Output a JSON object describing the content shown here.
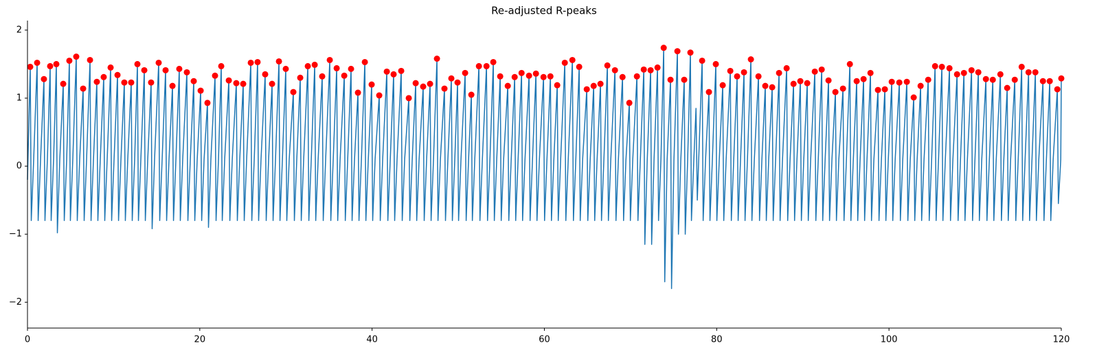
{
  "chart_data": {
    "type": "line",
    "title": "Re-adjusted R-peaks",
    "xlim": [
      0,
      120
    ],
    "ylim": [
      -2.38,
      2.14
    ],
    "xticks": [
      0,
      20,
      40,
      60,
      80,
      100,
      120
    ],
    "yticks": [
      {
        "value": -2,
        "label": "−2"
      },
      {
        "value": -1,
        "label": "−1"
      },
      0,
      1,
      2
    ],
    "series": [
      {
        "type": "line",
        "color": "#1f77b4",
        "x": [
          0,
          0.32,
          0.44,
          0.72,
          1.12,
          1.24,
          1.52,
          1.91,
          2.03,
          2.31,
          2.63,
          2.75,
          3.03,
          3.35,
          3.47,
          3.75,
          4.15,
          4.27,
          4.55,
          4.86,
          4.98,
          5.26,
          5.66,
          5.78,
          6.06,
          6.46,
          6.58,
          6.86,
          7.26,
          7.38,
          7.66,
          8.05,
          8.17,
          8.45,
          8.85,
          8.97,
          9.25,
          9.65,
          9.77,
          10.05,
          10.45,
          10.57,
          10.85,
          11.24,
          11.36,
          11.64,
          12.04,
          12.16,
          12.44,
          12.76,
          12.88,
          13.16,
          13.56,
          13.68,
          13.96,
          14.35,
          14.47,
          14.75,
          15.23,
          15.35,
          15.63,
          16.03,
          16.15,
          16.43,
          16.83,
          16.95,
          17.23,
          17.62,
          17.74,
          18.02,
          18.5,
          18.62,
          18.9,
          19.3,
          19.42,
          19.7,
          20.1,
          20.22,
          20.5,
          20.89,
          21.01,
          21.29,
          21.77,
          21.89,
          22.17,
          22.49,
          22.61,
          22.89,
          23.37,
          23.49,
          23.77,
          24.24,
          24.36,
          24.64,
          25.04,
          25.16,
          25.44,
          25.92,
          26.04,
          26.32,
          26.71,
          26.83,
          27.11,
          27.59,
          27.71,
          27.99,
          28.39,
          28.51,
          28.79,
          29.19,
          29.31,
          29.59,
          29.98,
          30.1,
          30.38,
          30.86,
          30.98,
          31.26,
          31.66,
          31.78,
          32.06,
          32.54,
          32.66,
          32.94,
          33.34,
          33.46,
          33.74,
          34.21,
          34.33,
          34.61,
          35.09,
          35.21,
          35.49,
          35.89,
          36.01,
          36.29,
          36.77,
          36.89,
          37.17,
          37.56,
          37.68,
          37.96,
          38.36,
          38.48,
          38.76,
          39.16,
          39.28,
          39.56,
          39.95,
          40.07,
          40.35,
          40.83,
          40.95,
          41.23,
          41.71,
          41.83,
          42.11,
          42.5,
          42.62,
          42.9,
          43.38,
          43.5,
          43.78,
          44.26,
          44.38,
          44.66,
          45.06,
          45.18,
          45.46,
          45.93,
          46.05,
          46.33,
          46.73,
          46.85,
          47.13,
          47.53,
          47.65,
          47.93,
          48.4,
          48.52,
          48.8,
          49.2,
          49.32,
          49.6,
          49.92,
          50.04,
          50.32,
          50.8,
          50.92,
          51.2,
          51.52,
          51.64,
          51.92,
          52.4,
          52.52,
          52.8,
          53.28,
          53.4,
          53.68,
          54.07,
          54.19,
          54.47,
          54.87,
          54.99,
          55.27,
          55.75,
          55.87,
          56.15,
          56.55,
          56.67,
          56.95,
          57.35,
          57.47,
          57.75,
          58.22,
          58.34,
          58.62,
          59.02,
          59.14,
          59.42,
          59.9,
          60.02,
          60.3,
          60.7,
          60.82,
          61.1,
          61.49,
          61.61,
          61.89,
          62.37,
          62.49,
          62.77,
          63.25,
          63.37,
          63.65,
          64.04,
          64.16,
          64.44,
          64.92,
          65.04,
          65.32,
          65.72,
          65.84,
          66.12,
          66.51,
          66.63,
          66.91,
          67.31,
          67.43,
          67.71,
          68.19,
          68.31,
          68.59,
          69.07,
          69.19,
          69.47,
          69.86,
          69.98,
          70.26,
          70.74,
          70.86,
          71.14,
          71.54,
          71.66,
          71.94,
          72.33,
          72.45,
          72.73,
          73.13,
          73.25,
          73.53,
          73.85,
          73.97,
          74.25,
          74.64,
          74.76,
          75.04,
          75.44,
          75.56,
          75.84,
          76.23,
          76.35,
          76.63,
          76.95,
          77.07,
          77.35,
          77.6,
          77.75,
          78.31,
          78.43,
          78.71,
          79.1,
          79.22,
          79.5,
          79.9,
          80.02,
          80.3,
          80.7,
          80.82,
          81.1,
          81.58,
          81.7,
          81.98,
          82.37,
          82.49,
          82.77,
          83.17,
          83.29,
          83.57,
          83.97,
          84.09,
          84.37,
          84.85,
          84.97,
          85.25,
          85.64,
          85.76,
          86.04,
          86.44,
          86.56,
          86.84,
          87.24,
          87.36,
          87.64,
          88.12,
          88.24,
          88.52,
          88.92,
          89.04,
          89.32,
          89.71,
          89.83,
          90.11,
          90.51,
          90.63,
          90.91,
          91.39,
          91.51,
          91.79,
          92.19,
          92.31,
          92.59,
          92.98,
          93.1,
          93.38,
          93.78,
          93.9,
          94.18,
          94.66,
          94.78,
          95.06,
          95.46,
          95.58,
          95.86,
          96.25,
          96.37,
          96.65,
          97.05,
          97.17,
          97.45,
          97.85,
          97.97,
          98.25,
          98.72,
          98.84,
          99.12,
          99.52,
          99.64,
          99.92,
          100.32,
          100.44,
          100.72,
          101.2,
          101.32,
          101.6,
          102.07,
          102.19,
          102.47,
          102.87,
          102.99,
          103.27,
          103.67,
          103.79,
          104.07,
          104.55,
          104.67,
          104.95,
          105.35,
          105.47,
          105.75,
          106.14,
          106.26,
          106.54,
          107.02,
          107.14,
          107.42,
          107.9,
          108.02,
          108.3,
          108.7,
          108.82,
          109.1,
          109.58,
          109.7,
          109.98,
          110.37,
          110.49,
          110.77,
          111.25,
          111.37,
          111.65,
          112.05,
          112.17,
          112.45,
          112.93,
          113.05,
          113.33,
          113.72,
          113.84,
          114.12,
          114.6,
          114.72,
          115.0,
          115.4,
          115.52,
          115.8,
          116.2,
          116.32,
          116.6,
          116.99,
          117.11,
          117.39,
          117.87,
          117.99,
          118.27,
          118.66,
          118.78,
          119.06,
          119.54,
          119.66,
          119.94,
          120.0
        ],
        "values": [
          -0.2,
          1.46,
          -0.8,
          0.1,
          1.52,
          -0.8,
          0.1,
          1.28,
          -0.8,
          0.1,
          1.47,
          -0.8,
          0.1,
          1.5,
          -0.98,
          0.1,
          1.21,
          -0.8,
          0.1,
          1.55,
          -0.8,
          0.1,
          1.61,
          -0.8,
          0.1,
          1.14,
          -0.8,
          0.1,
          1.56,
          -0.8,
          0.1,
          1.24,
          -0.8,
          0.1,
          1.31,
          -0.8,
          0.1,
          1.45,
          -0.8,
          0.1,
          1.34,
          -0.8,
          0.1,
          1.23,
          -0.8,
          0.1,
          1.23,
          -0.8,
          0.1,
          1.5,
          -0.8,
          0.1,
          1.41,
          -0.8,
          0.1,
          1.23,
          -0.92,
          0.1,
          1.52,
          -0.8,
          0.1,
          1.41,
          -0.8,
          0.1,
          1.18,
          -0.8,
          0.1,
          1.43,
          -0.8,
          0.1,
          1.38,
          -0.8,
          0.1,
          1.25,
          -0.8,
          0.1,
          1.11,
          -0.8,
          0.1,
          0.93,
          -0.9,
          0.1,
          1.33,
          -0.8,
          0.1,
          1.47,
          -0.8,
          0.1,
          1.26,
          -0.8,
          0.1,
          1.22,
          -0.8,
          0.1,
          1.21,
          -0.8,
          0.1,
          1.52,
          -0.8,
          0.1,
          1.53,
          -0.8,
          0.1,
          1.35,
          -0.8,
          0.1,
          1.21,
          -0.8,
          0.1,
          1.54,
          -0.8,
          0.1,
          1.43,
          -0.8,
          0.1,
          1.09,
          -0.8,
          0.1,
          1.3,
          -0.8,
          0.1,
          1.47,
          -0.8,
          0.1,
          1.49,
          -0.8,
          0.1,
          1.32,
          -0.8,
          0.1,
          1.56,
          -0.8,
          0.1,
          1.44,
          -0.8,
          0.1,
          1.33,
          -0.8,
          0.1,
          1.43,
          -0.8,
          0.1,
          1.08,
          -0.8,
          0.1,
          1.53,
          -0.8,
          0.1,
          1.2,
          -0.8,
          0.1,
          1.04,
          -0.8,
          0.1,
          1.39,
          -0.8,
          0.1,
          1.35,
          -0.8,
          0.1,
          1.4,
          -0.8,
          0.1,
          1.0,
          -0.8,
          0.1,
          1.22,
          -0.8,
          0.1,
          1.17,
          -0.8,
          0.1,
          1.21,
          -0.8,
          0.1,
          1.58,
          -0.8,
          0.1,
          1.14,
          -0.8,
          0.1,
          1.29,
          -0.8,
          0.1,
          1.23,
          -0.8,
          0.1,
          1.37,
          -0.8,
          0.1,
          1.05,
          -0.8,
          0.1,
          1.47,
          -0.8,
          0.1,
          1.47,
          -0.8,
          0.1,
          1.53,
          -0.8,
          0.1,
          1.32,
          -0.8,
          0.1,
          1.18,
          -0.8,
          0.1,
          1.31,
          -0.8,
          0.1,
          1.37,
          -0.8,
          0.1,
          1.33,
          -0.8,
          0.1,
          1.36,
          -0.8,
          0.1,
          1.31,
          -0.8,
          0.1,
          1.32,
          -0.8,
          0.1,
          1.19,
          -0.8,
          0.1,
          1.52,
          -0.8,
          0.1,
          1.56,
          -0.8,
          0.1,
          1.46,
          -0.8,
          0.1,
          1.13,
          -0.8,
          0.1,
          1.18,
          -0.8,
          0.1,
          1.21,
          -0.8,
          0.1,
          1.48,
          -0.8,
          0.1,
          1.41,
          -0.8,
          0.1,
          1.31,
          -0.8,
          0.1,
          0.93,
          -0.8,
          0.1,
          1.32,
          -0.8,
          0.1,
          1.42,
          -1.15,
          0.1,
          1.41,
          -1.15,
          0.1,
          1.45,
          -0.8,
          0.1,
          1.74,
          -1.7,
          0.1,
          1.27,
          -1.8,
          0.1,
          1.69,
          -1.0,
          0.1,
          1.27,
          -1.0,
          0.1,
          1.67,
          -0.8,
          0.1,
          0.85,
          -0.5,
          1.55,
          -0.8,
          0.1,
          1.09,
          -0.8,
          0.1,
          1.5,
          -0.8,
          0.1,
          1.19,
          -0.8,
          0.1,
          1.4,
          -0.8,
          0.1,
          1.32,
          -0.8,
          0.1,
          1.38,
          -0.8,
          0.1,
          1.57,
          -0.8,
          0.1,
          1.32,
          -0.8,
          0.1,
          1.18,
          -0.8,
          0.1,
          1.16,
          -0.8,
          0.1,
          1.37,
          -0.8,
          0.1,
          1.44,
          -0.8,
          0.1,
          1.21,
          -0.8,
          0.1,
          1.25,
          -0.8,
          0.1,
          1.22,
          -0.8,
          0.1,
          1.39,
          -0.8,
          0.1,
          1.42,
          -0.8,
          0.1,
          1.26,
          -0.8,
          0.1,
          1.09,
          -0.8,
          0.1,
          1.14,
          -0.8,
          0.1,
          1.5,
          -0.8,
          0.1,
          1.25,
          -0.8,
          0.1,
          1.28,
          -0.8,
          0.1,
          1.37,
          -0.8,
          0.1,
          1.12,
          -0.8,
          0.1,
          1.13,
          -0.8,
          0.1,
          1.24,
          -0.8,
          0.1,
          1.23,
          -0.8,
          0.1,
          1.24,
          -0.8,
          0.1,
          1.01,
          -0.8,
          0.1,
          1.18,
          -0.8,
          0.1,
          1.27,
          -0.8,
          0.1,
          1.47,
          -0.8,
          0.1,
          1.46,
          -0.8,
          0.1,
          1.44,
          -0.8,
          0.1,
          1.35,
          -0.8,
          0.1,
          1.37,
          -0.8,
          0.1,
          1.41,
          -0.8,
          0.1,
          1.38,
          -0.8,
          0.1,
          1.28,
          -0.8,
          0.1,
          1.27,
          -0.8,
          0.1,
          1.35,
          -0.8,
          0.1,
          1.15,
          -0.8,
          0.1,
          1.27,
          -0.8,
          0.1,
          1.46,
          -0.8,
          0.1,
          1.38,
          -0.8,
          0.1,
          1.38,
          -0.8,
          0.1,
          1.25,
          -0.8,
          0.1,
          1.25,
          -0.8,
          0.1,
          1.13,
          -0.55,
          0.1,
          1.29
        ]
      },
      {
        "type": "scatter",
        "color": "#ff0000",
        "x": [
          0.32,
          1.12,
          1.91,
          2.63,
          3.35,
          4.15,
          4.86,
          5.66,
          6.46,
          7.26,
          8.05,
          8.85,
          9.65,
          10.45,
          11.24,
          12.04,
          12.76,
          13.56,
          14.35,
          15.23,
          16.03,
          16.83,
          17.62,
          18.5,
          19.3,
          20.1,
          20.89,
          21.77,
          22.49,
          23.37,
          24.24,
          25.04,
          25.92,
          26.71,
          27.59,
          28.39,
          29.19,
          29.98,
          30.86,
          31.66,
          32.54,
          33.34,
          34.21,
          35.09,
          35.89,
          36.77,
          37.56,
          38.36,
          39.16,
          39.95,
          40.83,
          41.71,
          42.5,
          43.38,
          44.26,
          45.06,
          45.93,
          46.73,
          47.53,
          48.4,
          49.2,
          49.92,
          50.8,
          51.52,
          52.4,
          53.28,
          54.07,
          54.87,
          55.75,
          56.55,
          57.35,
          58.22,
          59.02,
          59.9,
          60.7,
          61.49,
          62.37,
          63.25,
          64.04,
          64.92,
          65.72,
          66.51,
          67.31,
          68.19,
          69.07,
          69.86,
          70.74,
          71.54,
          72.33,
          73.13,
          73.85,
          74.64,
          75.44,
          76.23,
          76.95,
          78.31,
          79.1,
          79.9,
          80.7,
          81.58,
          82.37,
          83.17,
          83.97,
          84.85,
          85.64,
          86.44,
          87.24,
          88.12,
          88.92,
          89.71,
          90.51,
          91.39,
          92.19,
          92.98,
          93.78,
          94.66,
          95.46,
          96.25,
          97.05,
          97.85,
          98.72,
          99.52,
          100.32,
          101.2,
          102.07,
          102.87,
          103.67,
          104.55,
          105.35,
          106.14,
          107.02,
          107.9,
          108.7,
          109.58,
          110.37,
          111.25,
          112.05,
          112.93,
          113.72,
          114.6,
          115.4,
          116.2,
          116.99,
          117.87,
          118.66,
          119.54,
          120.0
        ],
        "values": [
          1.46,
          1.52,
          1.28,
          1.47,
          1.5,
          1.21,
          1.55,
          1.61,
          1.14,
          1.56,
          1.24,
          1.31,
          1.45,
          1.34,
          1.23,
          1.23,
          1.5,
          1.41,
          1.23,
          1.52,
          1.41,
          1.18,
          1.43,
          1.38,
          1.25,
          1.11,
          0.93,
          1.33,
          1.47,
          1.26,
          1.22,
          1.21,
          1.52,
          1.53,
          1.35,
          1.21,
          1.54,
          1.43,
          1.09,
          1.3,
          1.47,
          1.49,
          1.32,
          1.56,
          1.44,
          1.33,
          1.43,
          1.08,
          1.53,
          1.2,
          1.04,
          1.39,
          1.35,
          1.4,
          1.0,
          1.22,
          1.17,
          1.21,
          1.58,
          1.14,
          1.29,
          1.23,
          1.37,
          1.05,
          1.47,
          1.47,
          1.53,
          1.32,
          1.18,
          1.31,
          1.37,
          1.33,
          1.36,
          1.31,
          1.32,
          1.19,
          1.52,
          1.56,
          1.46,
          1.13,
          1.18,
          1.21,
          1.48,
          1.41,
          1.31,
          0.93,
          1.32,
          1.42,
          1.41,
          1.45,
          1.74,
          1.27,
          1.69,
          1.27,
          1.67,
          1.55,
          1.09,
          1.5,
          1.19,
          1.4,
          1.32,
          1.38,
          1.57,
          1.32,
          1.18,
          1.16,
          1.37,
          1.44,
          1.21,
          1.25,
          1.22,
          1.39,
          1.42,
          1.26,
          1.09,
          1.14,
          1.5,
          1.25,
          1.28,
          1.37,
          1.12,
          1.13,
          1.24,
          1.23,
          1.24,
          1.01,
          1.18,
          1.27,
          1.47,
          1.46,
          1.44,
          1.35,
          1.37,
          1.41,
          1.38,
          1.28,
          1.27,
          1.35,
          1.15,
          1.27,
          1.46,
          1.38,
          1.38,
          1.25,
          1.25,
          1.13,
          1.29
        ]
      }
    ]
  }
}
